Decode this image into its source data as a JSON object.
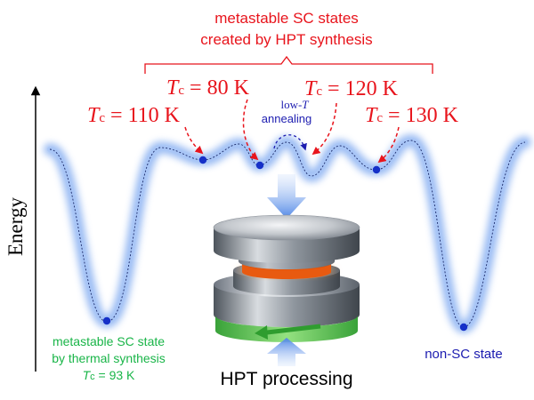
{
  "title": {
    "line1": "metastable SC states",
    "line2": "created by HPT synthesis"
  },
  "axis": {
    "label": "Energy"
  },
  "states": [
    {
      "tc_var": "T",
      "tc_sub": "c",
      "value": " = 110 K"
    },
    {
      "tc_var": "T",
      "tc_sub": "c",
      "value": " = 80 K"
    },
    {
      "tc_var": "T",
      "tc_sub": "c",
      "value": " = 120 K"
    },
    {
      "tc_var": "T",
      "tc_sub": "c",
      "value": " = 130 K"
    }
  ],
  "annealing": {
    "line1_prefix": "low-",
    "line1_var": "T",
    "line2": "annealing"
  },
  "thermal": {
    "line1": "metastable SC state",
    "line2": "by thermal synthesis",
    "tc_var": "T",
    "tc_sub": "c",
    "tc_value": " = 93 K"
  },
  "non_sc": {
    "label": "non-SC state"
  },
  "hpt": {
    "label": "HPT processing"
  },
  "colors": {
    "red": "#e8141c",
    "blue_text": "#1c1cb0",
    "green": "#19b548",
    "curve_glow": "#7ba7f0",
    "dot": "#1530c8",
    "arrow_blue": "#5a8fe8"
  },
  "icons": [
    "energy-axis-arrow",
    "hpt-press-icon",
    "rotation-arrow-icon"
  ]
}
